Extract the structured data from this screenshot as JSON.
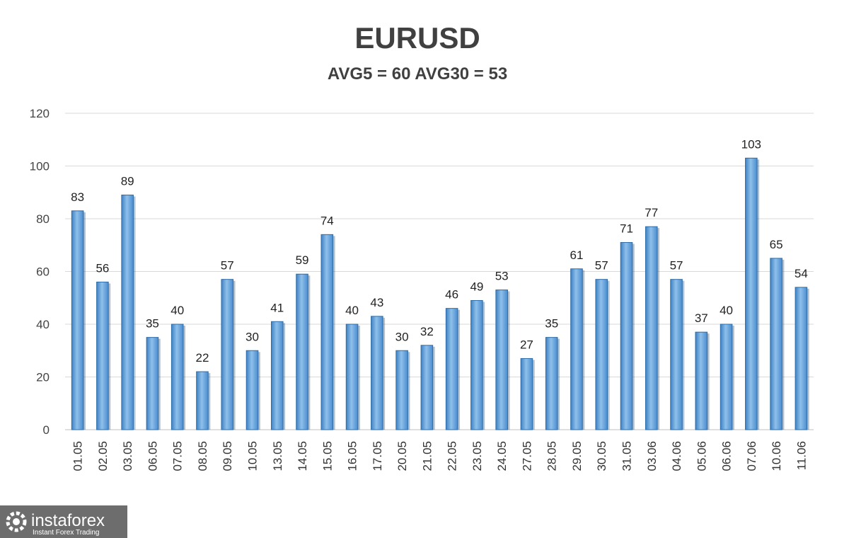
{
  "chart_data": {
    "type": "bar",
    "title": "EURUSD",
    "subtitle": "AVG5 = 60 AVG30 = 53",
    "xlabel": "",
    "ylabel": "",
    "ylim": [
      0,
      120
    ],
    "yticks": [
      0,
      20,
      40,
      60,
      80,
      100,
      120
    ],
    "grid": true,
    "legend": "none",
    "bar_color": "#5b9bd5",
    "bar_edge_color": "#2e6ca6",
    "categories": [
      "01.05",
      "02.05",
      "03.05",
      "06.05",
      "07.05",
      "08.05",
      "09.05",
      "10.05",
      "13.05",
      "14.05",
      "15.05",
      "16.05",
      "17.05",
      "20.05",
      "21.05",
      "22.05",
      "23.05",
      "24.05",
      "27.05",
      "28.05",
      "29.05",
      "30.05",
      "31.05",
      "03.06",
      "04.06",
      "05.06",
      "06.06",
      "07.06",
      "10.06",
      "11.06"
    ],
    "values": [
      83,
      56,
      89,
      35,
      40,
      22,
      57,
      30,
      41,
      59,
      74,
      40,
      43,
      30,
      32,
      46,
      49,
      53,
      27,
      35,
      61,
      57,
      71,
      77,
      57,
      37,
      40,
      103,
      65,
      54
    ]
  },
  "watermark": {
    "brand": "instaforex",
    "tagline": "Instant Forex Trading",
    "icon": "gear-logo-icon",
    "background": "#6d6d6d"
  }
}
